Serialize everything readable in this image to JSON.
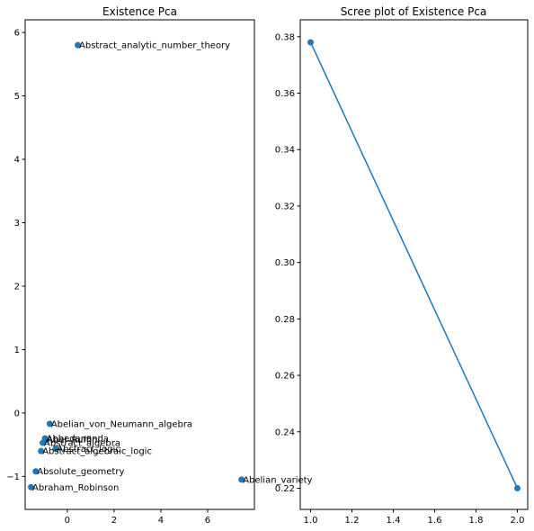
{
  "chart_data": [
    {
      "type": "scatter",
      "title": "Existence Pca",
      "xlabel": "",
      "ylabel": "",
      "xlim": [
        -1.8,
        8.0
      ],
      "ylim": [
        -1.52,
        6.2
      ],
      "xticks": [
        "0",
        "2",
        "4",
        "6"
      ],
      "yticks": [
        "−1",
        "0",
        "1",
        "2",
        "3",
        "4",
        "5",
        "6"
      ],
      "color": "#1f77b4",
      "points": [
        {
          "label": "Abstract_analytic_number_theory",
          "x": 0.45,
          "y": 5.8
        },
        {
          "label": "Abelian_von_Neumann_algebra",
          "x": -0.75,
          "y": -0.17
        },
        {
          "label": "Abhedananda",
          "x": -0.95,
          "y": -0.4
        },
        {
          "label": "Abel–Ruffini",
          "x": -0.92,
          "y": -0.42
        },
        {
          "label": "Abstract_algebra",
          "x": -1.05,
          "y": -0.47
        },
        {
          "label": "Abstract_logic",
          "x": -0.5,
          "y": -0.56
        },
        {
          "label": "Abstract_algebraic_logic",
          "x": -1.12,
          "y": -0.6
        },
        {
          "label": "Absolute_geometry",
          "x": -1.35,
          "y": -0.92
        },
        {
          "label": "Abraham_Robinson",
          "x": -1.55,
          "y": -1.17
        },
        {
          "label": "Abelian_variety",
          "x": 7.45,
          "y": -1.05
        }
      ]
    },
    {
      "type": "line",
      "title": "Scree plot of Existence Pca",
      "xlabel": "",
      "ylabel": "",
      "x": [
        1.0,
        2.0
      ],
      "y": [
        0.378,
        0.22
      ],
      "xlim": [
        0.95,
        2.05
      ],
      "ylim": [
        0.2125,
        0.386
      ],
      "xticks": [
        "1.0",
        "1.2",
        "1.4",
        "1.6",
        "1.8",
        "2.0"
      ],
      "yticks": [
        "0.22",
        "0.24",
        "0.26",
        "0.28",
        "0.30",
        "0.32",
        "0.34",
        "0.36",
        "0.38"
      ],
      "color": "#1f77b4"
    }
  ]
}
